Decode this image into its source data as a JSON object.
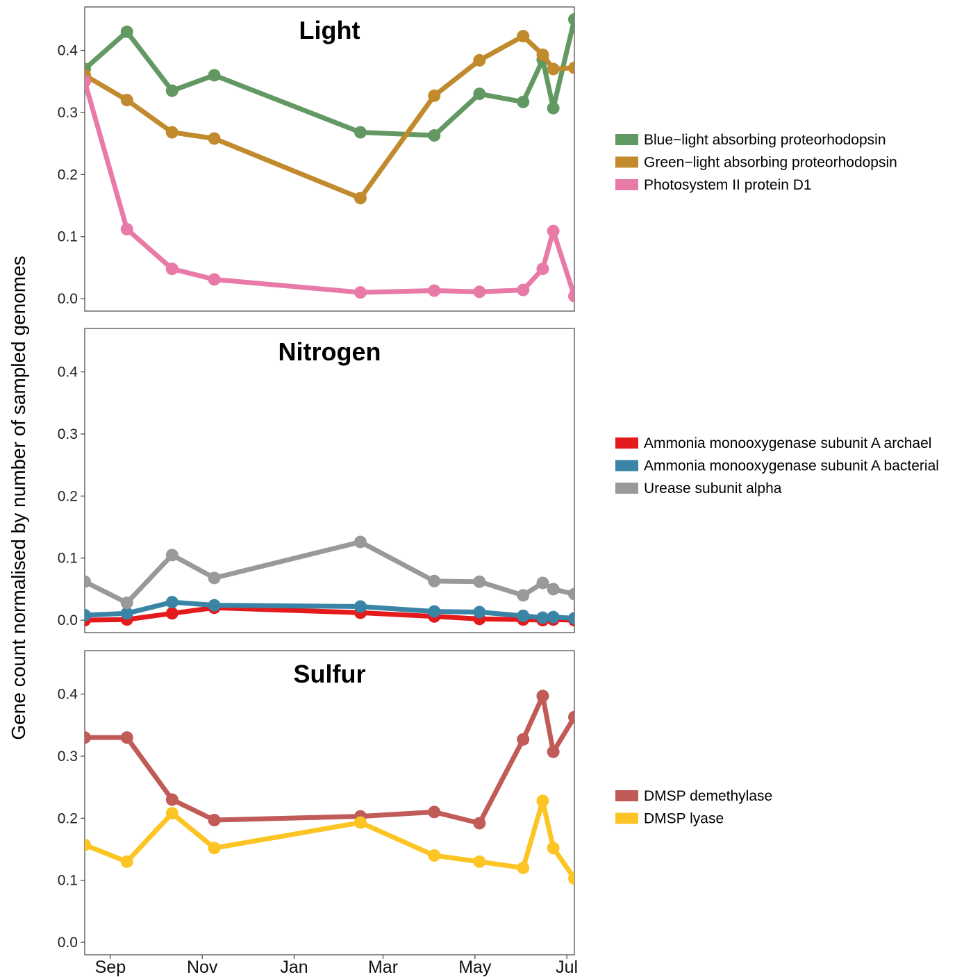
{
  "ylabel": "Gene count normalised by number of sampled genomes",
  "x_ticks": [
    "Sep",
    "Nov",
    "Jan",
    "Mar",
    "May",
    "Jul"
  ],
  "chart_data": [
    {
      "type": "line",
      "title": "Light",
      "ylim": [
        -0.02,
        0.47
      ],
      "y_ticks": [
        "0.0",
        "0.1",
        "0.2",
        "0.3",
        "0.4"
      ],
      "grid": false,
      "legend": "right",
      "x": [
        "Aug 15",
        "Sep 12",
        "Oct 12",
        "Nov 9",
        "Feb 14",
        "Apr 4",
        "May 4",
        "Jun 2",
        "Jun 15",
        "Jun 22",
        "Jul 6"
      ],
      "series": [
        {
          "name": "Blue−light absorbing proteorhodopsin",
          "color": "#629862",
          "values": [
            0.37,
            0.43,
            0.335,
            0.36,
            0.268,
            0.263,
            0.33,
            0.317,
            0.385,
            0.307,
            0.45
          ]
        },
        {
          "name": "Green−light absorbing proteorhodopsin",
          "color": "#C18A2D",
          "values": [
            0.36,
            0.32,
            0.268,
            0.258,
            0.162,
            0.327,
            0.384,
            0.423,
            0.393,
            0.37,
            0.372
          ]
        },
        {
          "name": "Photosystem II protein D1",
          "color": "#E87AA8",
          "values": [
            0.35,
            0.112,
            0.048,
            0.031,
            0.01,
            0.013,
            0.011,
            0.014,
            0.048,
            0.109,
            0.004
          ]
        }
      ]
    },
    {
      "type": "line",
      "title": "Nitrogen",
      "ylim": [
        -0.02,
        0.47
      ],
      "y_ticks": [
        "0.0",
        "0.1",
        "0.2",
        "0.3",
        "0.4"
      ],
      "grid": false,
      "legend": "right",
      "x": [
        "Aug 15",
        "Sep 12",
        "Oct 12",
        "Nov 9",
        "Feb 14",
        "Apr 4",
        "May 4",
        "Jun 2",
        "Jun 15",
        "Jun 22",
        "Jul 6"
      ],
      "series": [
        {
          "name": "Ammonia monooxygenase subunit A archael",
          "color": "#E41A1C",
          "values": [
            0.0,
            0.001,
            0.011,
            0.02,
            0.012,
            0.006,
            0.002,
            0.001,
            0.0,
            0.001,
            0.0
          ]
        },
        {
          "name": "Ammonia monooxygenase subunit A bacterial",
          "color": "#3A84A6",
          "values": [
            0.008,
            0.011,
            0.029,
            0.024,
            0.022,
            0.014,
            0.013,
            0.007,
            0.004,
            0.005,
            0.003
          ]
        },
        {
          "name": "Urease subunit alpha",
          "color": "#999999",
          "values": [
            0.062,
            0.028,
            0.105,
            0.068,
            0.126,
            0.063,
            0.062,
            0.04,
            0.06,
            0.05,
            0.042
          ]
        }
      ]
    },
    {
      "type": "line",
      "title": "Sulfur",
      "ylim": [
        -0.02,
        0.47
      ],
      "y_ticks": [
        "0.0",
        "0.1",
        "0.2",
        "0.3",
        "0.4"
      ],
      "grid": false,
      "legend": "right",
      "x": [
        "Aug 15",
        "Sep 12",
        "Oct 12",
        "Nov 9",
        "Feb 14",
        "Apr 4",
        "May 4",
        "Jun 2",
        "Jun 15",
        "Jun 22",
        "Jul 6"
      ],
      "series": [
        {
          "name": "DMSP demethylase",
          "color": "#C15B58",
          "values": [
            0.33,
            0.33,
            0.23,
            0.197,
            0.203,
            0.21,
            0.192,
            0.327,
            0.397,
            0.307,
            0.363
          ]
        },
        {
          "name": "DMSP lyase",
          "color": "#FCC524",
          "values": [
            0.157,
            0.13,
            0.208,
            0.152,
            0.193,
            0.14,
            0.13,
            0.12,
            0.228,
            0.152,
            0.103
          ]
        }
      ]
    }
  ]
}
